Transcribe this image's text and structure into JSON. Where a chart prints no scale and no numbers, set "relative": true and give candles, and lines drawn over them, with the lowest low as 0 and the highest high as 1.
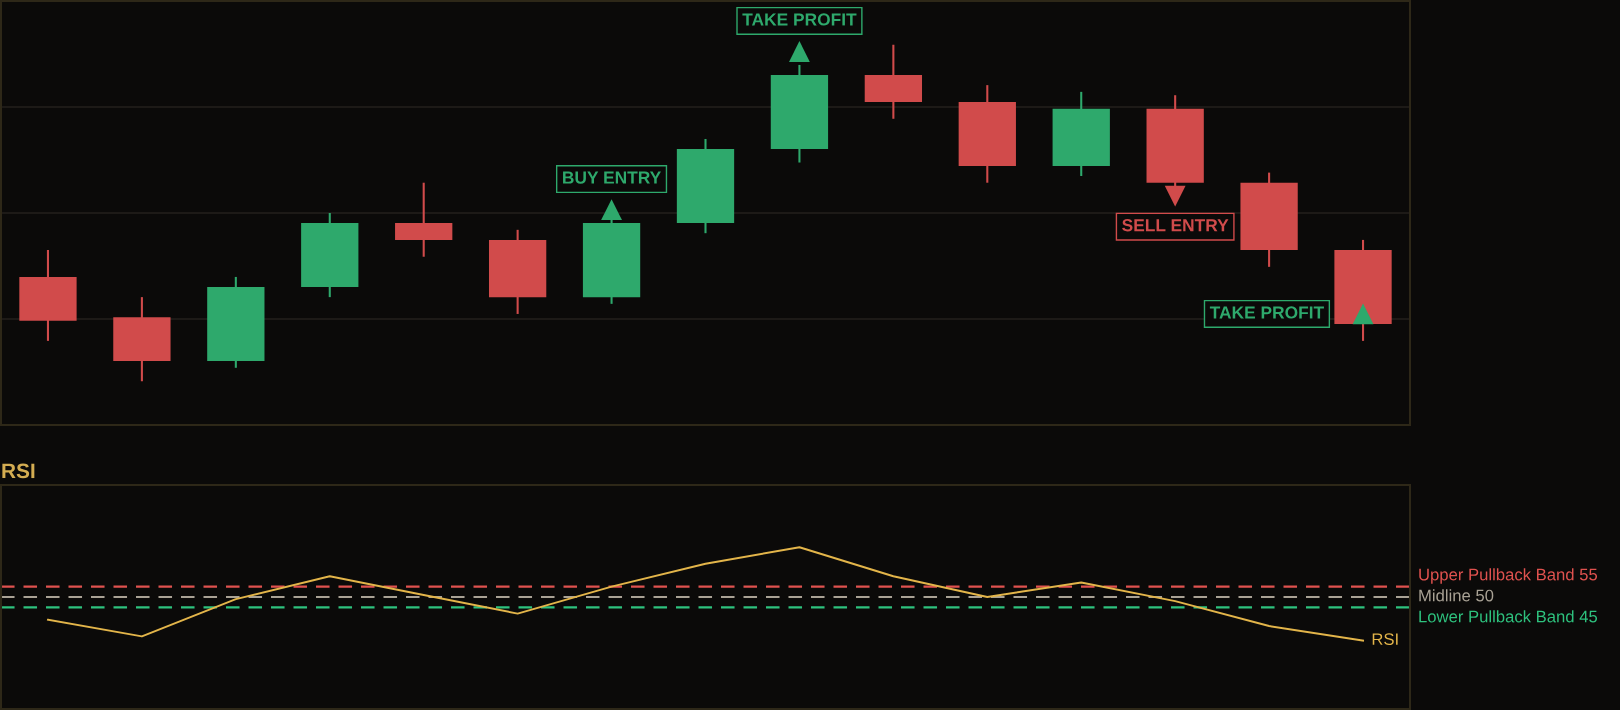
{
  "chart_data": [
    {
      "type": "candlestick",
      "categories": [
        null,
        null,
        null,
        null,
        null,
        null,
        null,
        null,
        null,
        null,
        null,
        null,
        null,
        null,
        null
      ],
      "ohlc": [
        [
          0.31,
          0.39,
          0.12,
          0.18
        ],
        [
          0.19,
          0.25,
          0.0,
          0.06
        ],
        [
          0.06,
          0.31,
          0.04,
          0.28
        ],
        [
          0.28,
          0.5,
          0.25,
          0.47
        ],
        [
          0.47,
          0.59,
          0.37,
          0.42
        ],
        [
          0.42,
          0.45,
          0.2,
          0.25
        ],
        [
          0.25,
          0.48,
          0.23,
          0.47
        ],
        [
          0.47,
          0.72,
          0.44,
          0.69
        ],
        [
          0.69,
          0.94,
          0.65,
          0.91
        ],
        [
          0.91,
          1.0,
          0.78,
          0.83
        ],
        [
          0.83,
          0.88,
          0.59,
          0.64
        ],
        [
          0.64,
          0.86,
          0.61,
          0.81
        ],
        [
          0.81,
          0.85,
          0.58,
          0.59
        ],
        [
          0.59,
          0.62,
          0.34,
          0.39
        ],
        [
          0.39,
          0.42,
          0.12,
          0.17
        ]
      ],
      "colors": [
        "#d14b4b",
        "#d14b4b",
        "#2ea96c",
        "#2ea96c",
        "#d14b4b",
        "#d14b4b",
        "#2ea96c",
        "#2ea96c",
        "#2ea96c",
        "#d14b4b",
        "#d14b4b",
        "#2ea96c",
        "#d14b4b",
        "#d14b4b",
        "#d14b4b"
      ],
      "relative": true,
      "grid": "y",
      "marker": "triangle",
      "series": [
        {
          "type": "scatter",
          "name": "BUY ENTRY",
          "color": "#2ea96c",
          "values": [
            null,
            null,
            null,
            null,
            null,
            null,
            0.51,
            null,
            null,
            null,
            null,
            null,
            null,
            null,
            null
          ]
        },
        {
          "type": "scatter",
          "name": "TAKE PROFIT",
          "color": "#2ea96c",
          "values": [
            null,
            null,
            null,
            null,
            null,
            null,
            null,
            null,
            0.98,
            null,
            null,
            null,
            null,
            null,
            0.2
          ]
        },
        {
          "type": "scatter",
          "name": "SELL ENTRY",
          "color": "#d14b4b",
          "values": [
            null,
            null,
            null,
            null,
            null,
            null,
            null,
            null,
            null,
            null,
            null,
            null,
            0.55,
            null,
            null
          ]
        }
      ]
    },
    {
      "type": "line",
      "title": "RSI",
      "categories": [
        null,
        null,
        null,
        null,
        null,
        null,
        null,
        null,
        null,
        null,
        null,
        null,
        null,
        null,
        null
      ],
      "series": [
        {
          "name": "RSI",
          "color": "#e3b54a",
          "values": [
            39,
            31,
            49,
            60,
            51,
            42,
            55,
            66,
            74,
            60,
            50,
            57,
            48,
            36,
            29
          ]
        }
      ],
      "ylim": [
        -4,
        104
      ],
      "ref_lines": [
        {
          "axis": "y",
          "value": 55,
          "label": "Upper Pullback Band 55",
          "color": "#e0524f",
          "line_style": "dashed"
        },
        {
          "axis": "y",
          "value": 50,
          "label": "Midline 50",
          "color": "#a9a295",
          "line_style": "dashed"
        },
        {
          "axis": "y",
          "value": 45,
          "label": "Lower Pullback Band 45",
          "color": "#2ec27e",
          "line_style": "dashed"
        }
      ],
      "tick_labels": false
    }
  ]
}
